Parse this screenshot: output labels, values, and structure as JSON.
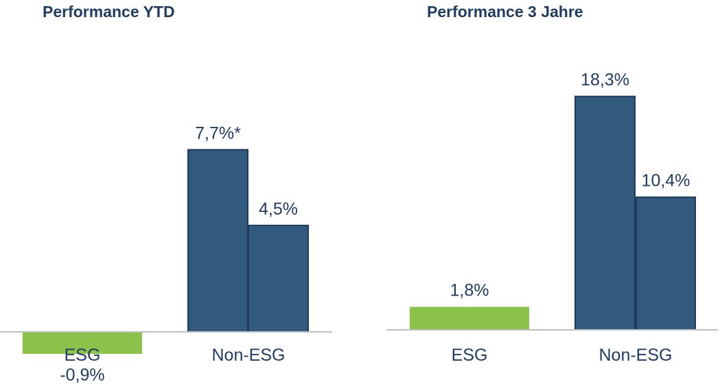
{
  "chart_data": [
    {
      "type": "bar",
      "title": "Performance YTD",
      "categories": [
        "ESG",
        "Non-ESG"
      ],
      "colors": {
        "esg": "#8bc34a",
        "non_esg": "#325a7d"
      },
      "bars": [
        {
          "category": "ESG",
          "value": -0.9,
          "label": "-0,9%",
          "color": "#8bc34a"
        },
        {
          "category": "Non-ESG",
          "value": 7.7,
          "label": "7,7%*",
          "color": "#325a7d"
        },
        {
          "category": "Non-ESG",
          "value": 4.5,
          "label": "4,5%",
          "color": "#325a7d"
        }
      ]
    },
    {
      "type": "bar",
      "title": "Performance 3 Jahre",
      "categories": [
        "ESG",
        "Non-ESG"
      ],
      "colors": {
        "esg": "#8bc34a",
        "non_esg": "#325a7d"
      },
      "bars": [
        {
          "category": "ESG",
          "value": 1.8,
          "label": "1,8%",
          "color": "#8bc34a"
        },
        {
          "category": "Non-ESG",
          "value": 18.3,
          "label": "18,3%",
          "color": "#325a7d"
        },
        {
          "category": "Non-ESG",
          "value": 10.4,
          "label": "10,4%",
          "color": "#325a7d"
        }
      ]
    }
  ]
}
